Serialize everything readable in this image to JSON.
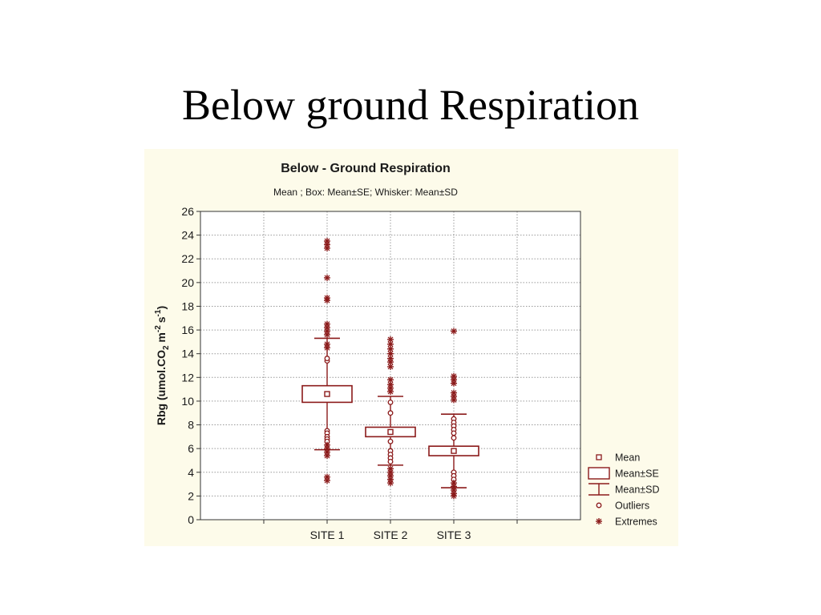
{
  "slide": {
    "title": "Below ground Respiration"
  },
  "colors": {
    "background": "#ffffff",
    "panel": "#fdfbea",
    "plot": "#ffffff",
    "mark": "#8b1a1a",
    "grid": "#9a9a9a",
    "axis": "#333333"
  },
  "chart_data": {
    "type": "box",
    "title": "Below - Ground Respiration",
    "subtitle": "Mean ; Box: Mean±SE; Whisker: Mean±SD",
    "ylabel_parts": [
      "Rbg (umol.CO",
      "2",
      " m",
      "-2",
      "s",
      "-1",
      ")"
    ],
    "ylim": [
      0,
      26
    ],
    "yticks": [
      0,
      2,
      4,
      6,
      8,
      10,
      12,
      14,
      16,
      18,
      20,
      22,
      24,
      26
    ],
    "xlim": [
      0,
      6
    ],
    "grid": true,
    "legend_position": "right-bottom",
    "categories": [
      "SITE 1",
      "SITE 2",
      "SITE 3"
    ],
    "series": [
      {
        "category": "SITE 1",
        "x": 2,
        "mean": 10.6,
        "se_low": 9.9,
        "se_high": 11.3,
        "sd_low": 5.9,
        "sd_high": 15.3,
        "outliers": [
          13.4,
          13.6,
          7.5,
          7.3,
          7.0,
          6.8,
          6.6
        ],
        "extremes": [
          23.5,
          23.2,
          22.9,
          20.4,
          18.7,
          18.5,
          16.5,
          16.2,
          15.9,
          15.6,
          14.8,
          14.5,
          6.3,
          6.0,
          5.7,
          5.4,
          3.6,
          3.3
        ]
      },
      {
        "category": "SITE 2",
        "x": 3,
        "mean": 7.4,
        "se_low": 7.0,
        "se_high": 7.8,
        "sd_low": 4.6,
        "sd_high": 10.4,
        "outliers": [
          9.9,
          9.0,
          6.6,
          5.8,
          5.5,
          5.2,
          4.9
        ],
        "extremes": [
          15.2,
          14.8,
          14.4,
          14.0,
          13.6,
          13.3,
          12.9,
          11.8,
          11.4,
          11.1,
          10.8,
          4.3,
          4.0,
          3.7,
          3.4,
          3.1
        ]
      },
      {
        "category": "SITE 3",
        "x": 4,
        "mean": 5.8,
        "se_low": 5.4,
        "se_high": 6.2,
        "sd_low": 2.7,
        "sd_high": 8.9,
        "outliers": [
          8.5,
          8.2,
          7.9,
          7.6,
          7.3,
          6.9,
          4.0,
          3.7,
          3.4
        ],
        "extremes": [
          15.9,
          12.1,
          11.8,
          11.5,
          10.7,
          10.4,
          10.1,
          3.1,
          2.8,
          2.5,
          2.2,
          2.0
        ]
      }
    ],
    "legend": [
      {
        "symbol": "mean",
        "label": "Mean"
      },
      {
        "symbol": "se",
        "label": "Mean±SE"
      },
      {
        "symbol": "sd",
        "label": "Mean±SD"
      },
      {
        "symbol": "outlier",
        "label": "Outliers"
      },
      {
        "symbol": "extreme",
        "label": "Extremes"
      }
    ]
  }
}
